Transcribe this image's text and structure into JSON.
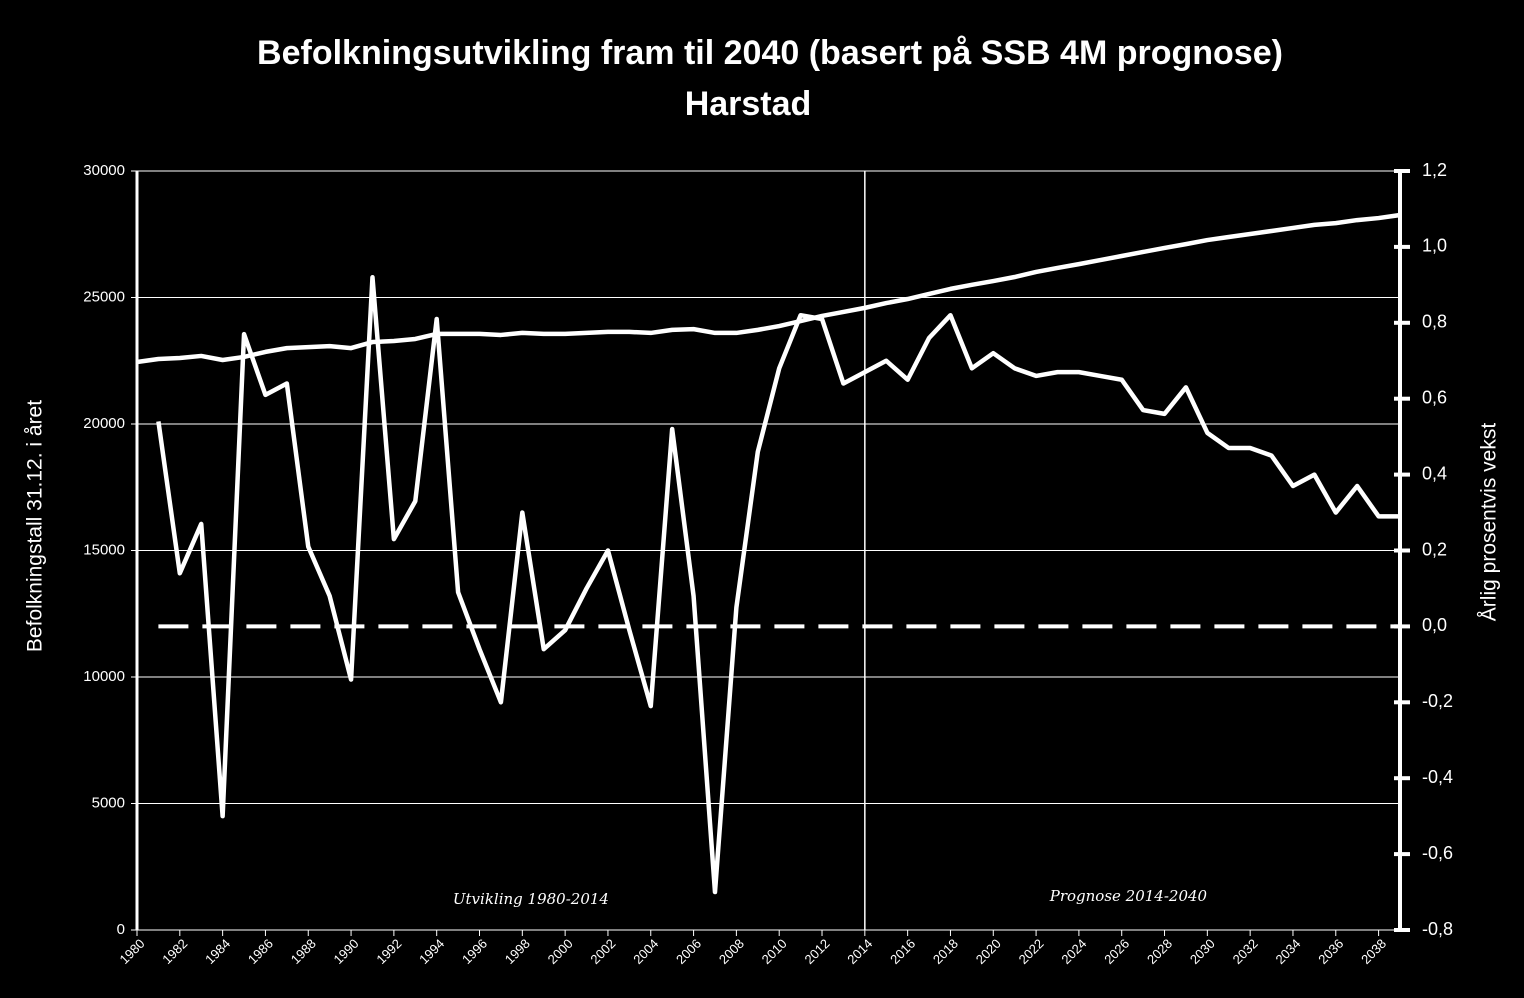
{
  "chart_data": {
    "type": "line",
    "title": "Befolkningsutvikling fram til 2040 (basert på SSB 4M prognose)",
    "subtitle": "Harstad",
    "y_label": "Befolkningstall 31.12. i året",
    "y2_label": "Årlig prosentvis vekst",
    "x": [
      1980,
      1981,
      1982,
      1983,
      1984,
      1985,
      1986,
      1987,
      1988,
      1989,
      1990,
      1991,
      1992,
      1993,
      1994,
      1995,
      1996,
      1997,
      1998,
      1999,
      2000,
      2001,
      2002,
      2003,
      2004,
      2005,
      2006,
      2007,
      2008,
      2009,
      2010,
      2011,
      2012,
      2013,
      2014,
      2015,
      2016,
      2017,
      2018,
      2019,
      2020,
      2021,
      2022,
      2023,
      2024,
      2025,
      2026,
      2027,
      2028,
      2029,
      2030,
      2031,
      2032,
      2033,
      2034,
      2035,
      2036,
      2037,
      2038,
      2039
    ],
    "series": [
      {
        "color": "#ffffff",
        "values": [
          22450,
          22570,
          22610,
          22690,
          22530,
          22650,
          22850,
          23000,
          23040,
          23080,
          23000,
          23240,
          23280,
          23360,
          23560,
          23560,
          23560,
          23520,
          23600,
          23560,
          23560,
          23600,
          23640,
          23640,
          23600,
          23720,
          23750,
          23600,
          23600,
          23720,
          23870,
          24070,
          24270,
          24430,
          24590,
          24780,
          24940,
          25140,
          25340,
          25500,
          25650,
          25810,
          26010,
          26170,
          26320,
          26480,
          26640,
          26800,
          26960,
          27110,
          27270,
          27390,
          27510,
          27630,
          27750,
          27870,
          27940,
          28060,
          28140,
          28260
        ]
      },
      {
        "color": "#ffffff",
        "axis": "y2",
        "values": [
          null,
          0.54,
          0.14,
          0.27,
          -0.5,
          0.77,
          0.61,
          0.64,
          0.21,
          0.08,
          -0.14,
          0.92,
          0.23,
          0.33,
          0.81,
          0.09,
          -0.06,
          -0.2,
          0.3,
          -0.06,
          -0.01,
          0.1,
          0.2,
          -0.01,
          -0.21,
          0.52,
          0.08,
          -0.7,
          0.05,
          0.46,
          0.68,
          0.82,
          0.81,
          0.64,
          0.67,
          0.7,
          0.65,
          0.76,
          0.82,
          0.68,
          0.72,
          0.68,
          0.66,
          0.67,
          0.67,
          0.66,
          0.65,
          0.57,
          0.56,
          0.63,
          0.51,
          0.47,
          0.47,
          0.45,
          0.37,
          0.4,
          0.3,
          0.37,
          0.29,
          0.29
        ]
      }
    ],
    "xlim": [
      1980,
      2039
    ],
    "xticks": [
      1980,
      1982,
      1984,
      1986,
      1988,
      1990,
      1992,
      1994,
      1996,
      1998,
      2000,
      2002,
      2004,
      2006,
      2008,
      2010,
      2012,
      2014,
      2016,
      2018,
      2020,
      2022,
      2024,
      2026,
      2028,
      2030,
      2032,
      2034,
      2036,
      2038
    ],
    "ylim": [
      0,
      30000
    ],
    "yticks": [
      0,
      5000,
      10000,
      15000,
      20000,
      25000,
      30000
    ],
    "y2lim": [
      -0.8,
      1.2
    ],
    "y2ticks": [
      {
        "value": -0.8,
        "label": "-0,8"
      },
      {
        "value": -0.6,
        "label": "-0,6"
      },
      {
        "value": -0.4,
        "label": "-0,4"
      },
      {
        "value": -0.2,
        "label": "-0,2"
      },
      {
        "value": 0,
        "label": "0,0"
      },
      {
        "value": 0.2,
        "label": "0,2"
      },
      {
        "value": 0.4,
        "label": "0,4"
      },
      {
        "value": 0.6,
        "label": "0,6"
      },
      {
        "value": 0.8,
        "label": "0,8"
      },
      {
        "value": 1,
        "label": "1,0"
      },
      {
        "value": 1.2,
        "label": "1,2"
      }
    ],
    "grid": true,
    "zero_line_y2": 0,
    "divider_x": 2014,
    "annotations": [
      "Utvikling 1980-2014",
      "Prognose 2014-2040"
    ]
  }
}
